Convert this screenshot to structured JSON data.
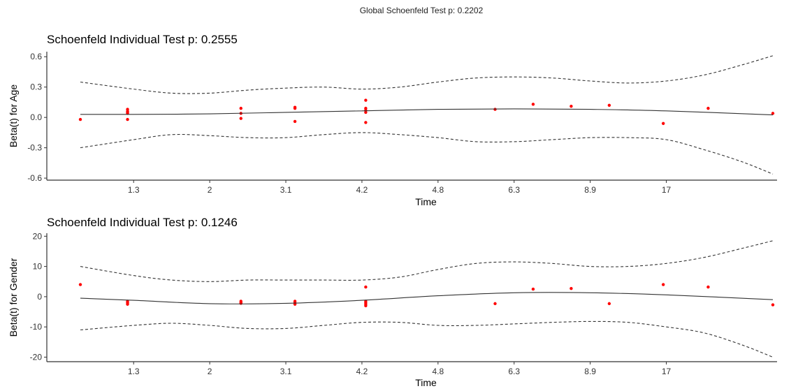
{
  "global_title": "Global Schoenfeld Test p: 0.2202",
  "colors": {
    "points": "#ff0000",
    "lines": "#333333",
    "axis": "#333333",
    "text": "#000000"
  },
  "chart_data": [
    {
      "type": "scatter",
      "title": "Schoenfeld Individual Test p: 0.2555",
      "xlabel": "Time",
      "ylabel": "Beta(t) for Age",
      "x_ticks": [
        "1.3",
        "2",
        "3.1",
        "4.2",
        "4.8",
        "6.3",
        "8.9",
        "17"
      ],
      "y_ticks": [
        -0.6,
        -0.3,
        0.0,
        0.3,
        0.6
      ],
      "y_tick_labels": [
        "-0.6",
        "-0.3",
        "0.0",
        "0.3",
        "0.6"
      ],
      "ylim": [
        -0.62,
        0.65
      ],
      "x_axis_scale": "transformed (tick labels are time values)",
      "grid": false,
      "series": [
        {
          "role": "points",
          "x": [
            0.3,
            0.92,
            0.92,
            0.92,
            0.92,
            0.92,
            2.41,
            2.41,
            2.41,
            3.12,
            3.12,
            3.12,
            4.05,
            4.05,
            4.05,
            4.05,
            4.05,
            5.75,
            6.25,
            6.75,
            7.25,
            7.96,
            8.55,
            9.4
          ],
          "y": [
            -0.02,
            0.04,
            0.06,
            0.08,
            0.05,
            -0.02,
            0.09,
            0.04,
            -0.01,
            0.09,
            0.1,
            -0.04,
            0.17,
            0.09,
            0.07,
            0.05,
            -0.05,
            0.08,
            0.13,
            0.11,
            0.12,
            -0.06,
            0.09,
            0.04
          ]
        },
        {
          "role": "fit",
          "x": [
            0.3,
            1.0,
            2.0,
            3.0,
            4.0,
            5.0,
            6.0,
            7.0,
            8.0,
            9.4
          ],
          "y": [
            0.03,
            0.03,
            0.035,
            0.05,
            0.065,
            0.08,
            0.085,
            0.08,
            0.065,
            0.025
          ]
        },
        {
          "role": "upper-band",
          "x": [
            0.3,
            1.0,
            1.5,
            2.0,
            2.5,
            3.0,
            3.5,
            4.0,
            4.5,
            5.0,
            5.5,
            6.0,
            6.5,
            7.0,
            7.5,
            8.0,
            8.5,
            9.0,
            9.4
          ],
          "y": [
            0.35,
            0.28,
            0.24,
            0.24,
            0.27,
            0.29,
            0.3,
            0.28,
            0.3,
            0.35,
            0.39,
            0.4,
            0.39,
            0.36,
            0.34,
            0.36,
            0.42,
            0.52,
            0.61
          ]
        },
        {
          "role": "lower-band",
          "x": [
            0.3,
            1.0,
            1.5,
            2.0,
            2.5,
            3.0,
            3.5,
            4.0,
            4.5,
            5.0,
            5.5,
            6.0,
            6.5,
            7.0,
            7.5,
            8.0,
            8.5,
            9.0,
            9.4
          ],
          "y": [
            -0.3,
            -0.22,
            -0.17,
            -0.18,
            -0.2,
            -0.2,
            -0.17,
            -0.15,
            -0.17,
            -0.2,
            -0.24,
            -0.24,
            -0.22,
            -0.2,
            -0.2,
            -0.22,
            -0.32,
            -0.44,
            -0.56
          ]
        }
      ]
    },
    {
      "type": "scatter",
      "title": "Schoenfeld Individual Test p: 0.1246",
      "xlabel": "Time",
      "ylabel": "Beta(t) for Gender",
      "x_ticks": [
        "1.3",
        "2",
        "3.1",
        "4.2",
        "4.8",
        "6.3",
        "8.9",
        "17"
      ],
      "y_ticks": [
        -20,
        -10,
        0,
        10,
        20
      ],
      "y_tick_labels": [
        "-20",
        "-10",
        "0",
        "10",
        "20"
      ],
      "ylim": [
        -21.5,
        21
      ],
      "x_axis_scale": "transformed (tick labels are time values)",
      "grid": false,
      "series": [
        {
          "role": "points",
          "x": [
            0.3,
            0.92,
            0.92,
            0.92,
            2.41,
            2.41,
            2.41,
            3.12,
            3.12,
            3.12,
            4.05,
            4.05,
            4.05,
            4.05,
            4.05,
            5.75,
            6.25,
            6.75,
            7.25,
            7.96,
            8.55,
            9.4
          ],
          "y": [
            4,
            -1.5,
            -2,
            -2.5,
            -1.5,
            -2,
            -2.2,
            -1.5,
            -2,
            -2.5,
            3.2,
            -1.5,
            -2,
            -2.5,
            -3,
            -2.3,
            2.5,
            2.7,
            -2.3,
            4,
            3.2,
            -2.7
          ]
        },
        {
          "role": "fit",
          "x": [
            0.3,
            1.0,
            2.0,
            3.0,
            4.0,
            5.0,
            6.0,
            7.0,
            8.0,
            9.4
          ],
          "y": [
            -0.5,
            -1.2,
            -2.3,
            -2.2,
            -1.2,
            0.3,
            1.3,
            1.3,
            0.6,
            -1
          ]
        },
        {
          "role": "upper-band",
          "x": [
            0.3,
            1.0,
            1.5,
            2.0,
            2.5,
            3.0,
            3.5,
            4.0,
            4.5,
            5.0,
            5.5,
            6.0,
            6.5,
            7.0,
            7.5,
            8.0,
            8.5,
            9.0,
            9.4
          ],
          "y": [
            10,
            7,
            5.5,
            5,
            5.5,
            5.5,
            5.5,
            5.5,
            6.5,
            9,
            11,
            11.5,
            11,
            10,
            10,
            11,
            13,
            16,
            18.5
          ]
        },
        {
          "role": "lower-band",
          "x": [
            0.3,
            1.0,
            1.5,
            2.0,
            2.5,
            3.0,
            3.5,
            4.0,
            4.5,
            5.0,
            5.5,
            6.0,
            6.5,
            7.0,
            7.5,
            8.0,
            8.5,
            9.0,
            9.4
          ],
          "y": [
            -11,
            -9.5,
            -8.8,
            -9.5,
            -10.5,
            -10.5,
            -9.5,
            -8.5,
            -8.5,
            -9.5,
            -9.5,
            -9,
            -8.5,
            -8.2,
            -8.5,
            -10,
            -12,
            -16,
            -20
          ]
        }
      ]
    }
  ]
}
